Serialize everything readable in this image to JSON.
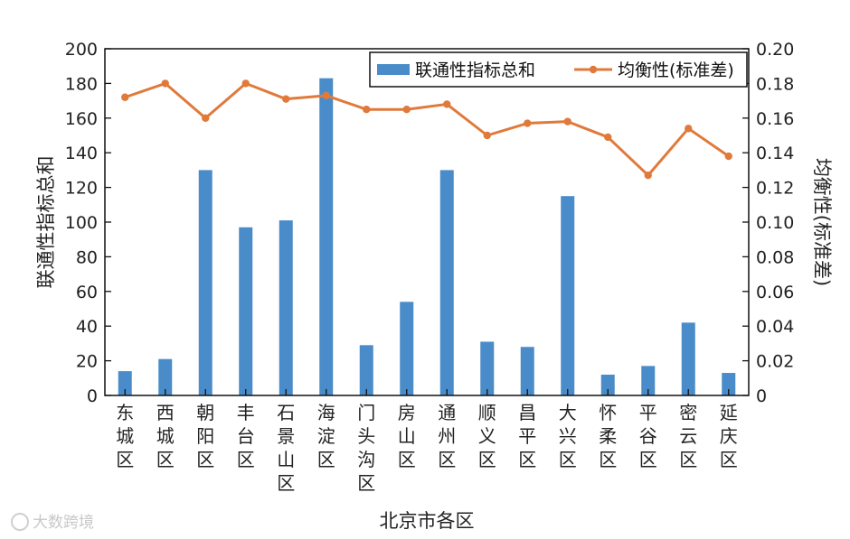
{
  "chart_data": {
    "type": "bar",
    "categories": [
      "东城区",
      "西城区",
      "朝阳区",
      "丰台区",
      "石景山区",
      "海淀区",
      "门头沟区",
      "房山区",
      "通州区",
      "顺义区",
      "昌平区",
      "大兴区",
      "怀柔区",
      "平谷区",
      "密云区",
      "延庆区"
    ],
    "series": [
      {
        "name": "联通性指标总和",
        "type": "bar",
        "axis": "left",
        "color": "#4a8cc9",
        "values": [
          14,
          21,
          130,
          97,
          101,
          183,
          29,
          54,
          130,
          31,
          28,
          115,
          12,
          17,
          42,
          13
        ]
      },
      {
        "name": "均衡性(标准差)",
        "type": "line",
        "axis": "right",
        "color": "#e07a3b",
        "values": [
          0.172,
          0.18,
          0.16,
          0.18,
          0.171,
          0.173,
          0.165,
          0.165,
          0.168,
          0.15,
          0.157,
          0.158,
          0.149,
          0.127,
          0.154,
          0.138
        ]
      }
    ],
    "xlabel": "北京市各区",
    "ylabel": "联通性指标总和",
    "y2label": "均衡性(标准差)",
    "ylim": [
      0,
      200
    ],
    "y2lim": [
      0,
      0.2
    ],
    "yticks": [
      "0",
      "20",
      "40",
      "60",
      "80",
      "100",
      "120",
      "140",
      "160",
      "180",
      "200"
    ],
    "y2ticks": [
      "0",
      "0.02",
      "0.04",
      "0.06",
      "0.08",
      "0.10",
      "0.12",
      "0.14",
      "0.16",
      "0.18",
      "0.20"
    ],
    "legend_position": "top-right",
    "grid": false
  },
  "watermark": "大数跨境"
}
